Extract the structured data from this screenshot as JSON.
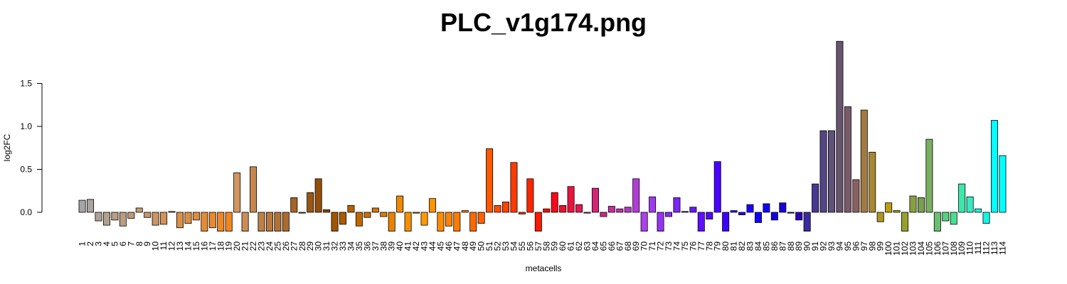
{
  "chart_data": {
    "type": "bar",
    "title": "PLC_v1g174.png",
    "xlabel": "metacells",
    "ylabel": "log2FC",
    "ylim": [
      -0.23,
      2.0
    ],
    "yticks": [
      0.0,
      0.5,
      1.0,
      1.5
    ],
    "ytick_labels": [
      "0.0",
      "0.5",
      "1.0",
      "1.5"
    ],
    "grid": false,
    "legend": "none",
    "categories": [
      "1",
      "2",
      "3",
      "4",
      "5",
      "6",
      "7",
      "8",
      "9",
      "10",
      "11",
      "12",
      "13",
      "14",
      "15",
      "16",
      "17",
      "18",
      "19",
      "20",
      "21",
      "22",
      "23",
      "24",
      "25",
      "26",
      "27",
      "28",
      "29",
      "30",
      "31",
      "32",
      "33",
      "34",
      "35",
      "36",
      "37",
      "38",
      "39",
      "40",
      "41",
      "42",
      "43",
      "44",
      "45",
      "46",
      "47",
      "48",
      "49",
      "50",
      "51",
      "52",
      "53",
      "54",
      "55",
      "56",
      "57",
      "58",
      "59",
      "60",
      "61",
      "62",
      "63",
      "64",
      "65",
      "66",
      "67",
      "68",
      "69",
      "70",
      "71",
      "72",
      "73",
      "74",
      "75",
      "76",
      "77",
      "78",
      "79",
      "80",
      "81",
      "82",
      "83",
      "84",
      "85",
      "86",
      "87",
      "88",
      "89",
      "90",
      "91",
      "92",
      "93",
      "94",
      "95",
      "96",
      "97",
      "98",
      "99",
      "100",
      "101",
      "102",
      "103",
      "104",
      "105",
      "106",
      "107",
      "108",
      "109",
      "110",
      "111",
      "112",
      "113",
      "114"
    ],
    "values": [
      0.14,
      0.15,
      -0.1,
      -0.15,
      -0.09,
      -0.16,
      -0.07,
      0.05,
      -0.06,
      -0.15,
      -0.14,
      0.01,
      -0.18,
      -0.13,
      -0.09,
      -0.22,
      -0.18,
      -0.22,
      -0.22,
      0.46,
      -0.22,
      0.53,
      -0.22,
      -0.22,
      -0.22,
      -0.22,
      0.17,
      -0.01,
      0.23,
      0.39,
      0.03,
      -0.22,
      -0.14,
      0.08,
      -0.16,
      -0.06,
      0.05,
      -0.05,
      -0.22,
      0.19,
      -0.22,
      -0.01,
      -0.15,
      0.16,
      -0.22,
      -0.16,
      -0.22,
      0.02,
      -0.22,
      -0.13,
      0.74,
      0.08,
      0.12,
      0.58,
      -0.02,
      0.39,
      -0.22,
      0.04,
      0.23,
      0.08,
      0.3,
      0.09,
      -0.01,
      0.28,
      -0.05,
      0.07,
      0.04,
      0.06,
      0.39,
      -0.22,
      0.18,
      -0.22,
      -0.05,
      0.17,
      0.01,
      0.06,
      -0.22,
      -0.08,
      0.59,
      -0.22,
      0.02,
      -0.03,
      0.09,
      -0.12,
      0.1,
      -0.09,
      0.11,
      -0.01,
      -0.09,
      -0.22,
      0.33,
      0.95,
      0.95,
      1.99,
      1.23,
      0.38,
      1.19,
      0.7,
      -0.11,
      0.11,
      0.02,
      -0.22,
      0.19,
      0.17,
      0.85,
      -0.22,
      -0.1,
      -0.14,
      0.33,
      0.18,
      0.04,
      -0.13,
      1.07,
      0.66
    ],
    "colors": [
      "#A5A5A5",
      "#AAA39E",
      "#AEA196",
      "#B2A08F",
      "#B69E87",
      "#BB9C80",
      "#BF9A78",
      "#C49971",
      "#C89769",
      "#CC9562",
      "#D0935A",
      "#D59253",
      "#D9904B",
      "#DD8E44",
      "#E28C3C",
      "#E68B35",
      "#EA892D",
      "#EF8726",
      "#F3851E",
      "#D29560",
      "#CB8E57",
      "#C5874F",
      "#BF8046",
      "#B8793E",
      "#B27235",
      "#AC6B2D",
      "#A56424",
      "#9F5D1C",
      "#995613",
      "#924F0B",
      "#8C4802",
      "#A05500",
      "#AB5B00",
      "#B66200",
      "#C06800",
      "#CB6F00",
      "#D57500",
      "#E07B00",
      "#EA8200",
      "#F08800",
      "#F58E00",
      "#FA9400",
      "#FF9A00",
      "#FF9400",
      "#FF8C00",
      "#FF8300",
      "#FF7B00",
      "#FF7200",
      "#FF6A00",
      "#FF6100",
      "#FF5800",
      "#FF4E00",
      "#FF4300",
      "#FF3900",
      "#FF2E00",
      "#FF2400",
      "#FF1900",
      "#FF0F00",
      "#F80A18",
      "#F10F2B",
      "#EA143E",
      "#E31951",
      "#DC1E64",
      "#D52377",
      "#CE288A",
      "#C72D9D",
      "#C032B0",
      "#B937C3",
      "#B23CD6",
      "#AB41E9",
      "#A03AF0",
      "#9533F2",
      "#8A2CF4",
      "#7F25F6",
      "#741EF8",
      "#6917FA",
      "#5E10FC",
      "#5309FE",
      "#4802FF",
      "#3D00FF",
      "#3200FF",
      "#2700FF",
      "#1C00FF",
      "#1100FF",
      "#0E00F6",
      "#1500E6",
      "#1C00D6",
      "#2400C6",
      "#2B00B6",
      "#3A2A9E",
      "#483892",
      "#534586",
      "#5E527A",
      "#69546E",
      "#7A5A6A",
      "#8A6060",
      "#A07A40",
      "#A88830",
      "#B09420",
      "#B8A010",
      "#A8A020",
      "#98A030",
      "#88A040",
      "#78A050",
      "#78B060",
      "#68C070",
      "#58D080",
      "#48E090",
      "#3AE8A8",
      "#30EEC0",
      "#20F2D8",
      "#10F6E8",
      "#00FFFF",
      "#00FFFF"
    ]
  }
}
